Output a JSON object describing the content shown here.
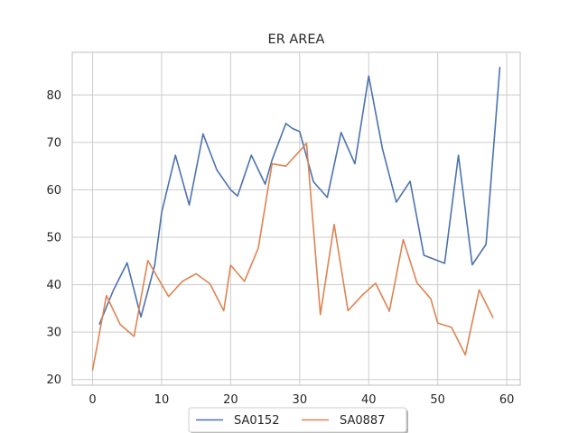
{
  "chart_data": {
    "type": "line",
    "title": "ER AREA",
    "xlabel": "",
    "ylabel": "",
    "xlim": [
      -2.95,
      61.95
    ],
    "ylim": [
      18.8,
      89.0
    ],
    "xticks": [
      0,
      10,
      20,
      30,
      40,
      50,
      60
    ],
    "yticks": [
      20,
      30,
      40,
      50,
      60,
      70,
      80
    ],
    "grid": true,
    "legend": {
      "position": "bottom-center",
      "columns": 2
    },
    "series": [
      {
        "name": "SA0152",
        "color": "#4c72b0",
        "x": [
          1,
          3,
          5,
          7,
          9,
          10,
          12,
          14,
          16,
          18,
          20,
          21,
          23,
          25,
          26,
          28,
          29,
          30,
          32,
          34,
          36,
          38,
          40,
          42,
          44,
          46,
          48,
          51,
          53,
          55,
          57,
          59
        ],
        "y": [
          31.7,
          38.8,
          44.6,
          33.2,
          44.1,
          55.2,
          67.3,
          56.8,
          71.8,
          64.2,
          60.0,
          58.7,
          67.3,
          61.2,
          66.3,
          74.0,
          72.9,
          72.3,
          61.7,
          58.4,
          72.1,
          65.5,
          84.0,
          68.6,
          57.4,
          61.8,
          46.2,
          44.5,
          67.3,
          44.2,
          48.5,
          85.8
        ]
      },
      {
        "name": "SA0887",
        "color": "#dd8452",
        "x": [
          0,
          2,
          4,
          6,
          8,
          11,
          13,
          15,
          17,
          19,
          20,
          22,
          24,
          26,
          28,
          31,
          33,
          35,
          37,
          39,
          41,
          43,
          45,
          47,
          49,
          50,
          52,
          54,
          56,
          58
        ],
        "y": [
          22.0,
          37.7,
          31.6,
          29.1,
          45.1,
          37.5,
          40.7,
          42.3,
          40.2,
          34.5,
          44.1,
          40.7,
          47.7,
          65.5,
          65.0,
          69.8,
          33.7,
          52.7,
          34.5,
          37.7,
          40.3,
          34.4,
          49.5,
          40.4,
          37.0,
          31.9,
          31.0,
          25.2,
          38.9,
          33.1
        ]
      }
    ]
  }
}
